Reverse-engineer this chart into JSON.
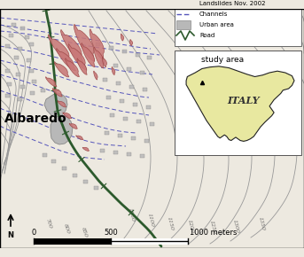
{
  "bg_color": "#ede9e0",
  "map_bg": "#e8e4d8",
  "contour_color": "#999999",
  "channel_color": "#5555bb",
  "landslide_color": "#c87878",
  "landslide_edge": "#9B4444",
  "urban_color": "#b8b8b8",
  "urban_edge": "#888888",
  "road_color": "#2d5a2d",
  "place_label": "Albaredo",
  "italy_bg": "#e8e8a0",
  "italy_border": "#222222",
  "study_area_label": "study area",
  "italy_label": "ITALY",
  "legend_labels": [
    "Landslides Nov. 2002",
    "Channels",
    "Urban area",
    "Road"
  ],
  "contour_label_data": [
    [
      55,
      28,
      "700",
      -72
    ],
    [
      75,
      22,
      "800",
      -72
    ],
    [
      95,
      18,
      "850",
      -72
    ],
    [
      148,
      38,
      "1050",
      -76
    ],
    [
      170,
      32,
      "1100",
      -76
    ],
    [
      192,
      28,
      "1150",
      -76
    ],
    [
      215,
      25,
      "1200",
      -76
    ],
    [
      240,
      24,
      "1250",
      -76
    ],
    [
      266,
      25,
      "1300",
      -76
    ],
    [
      295,
      28,
      "1350",
      -76
    ]
  ]
}
